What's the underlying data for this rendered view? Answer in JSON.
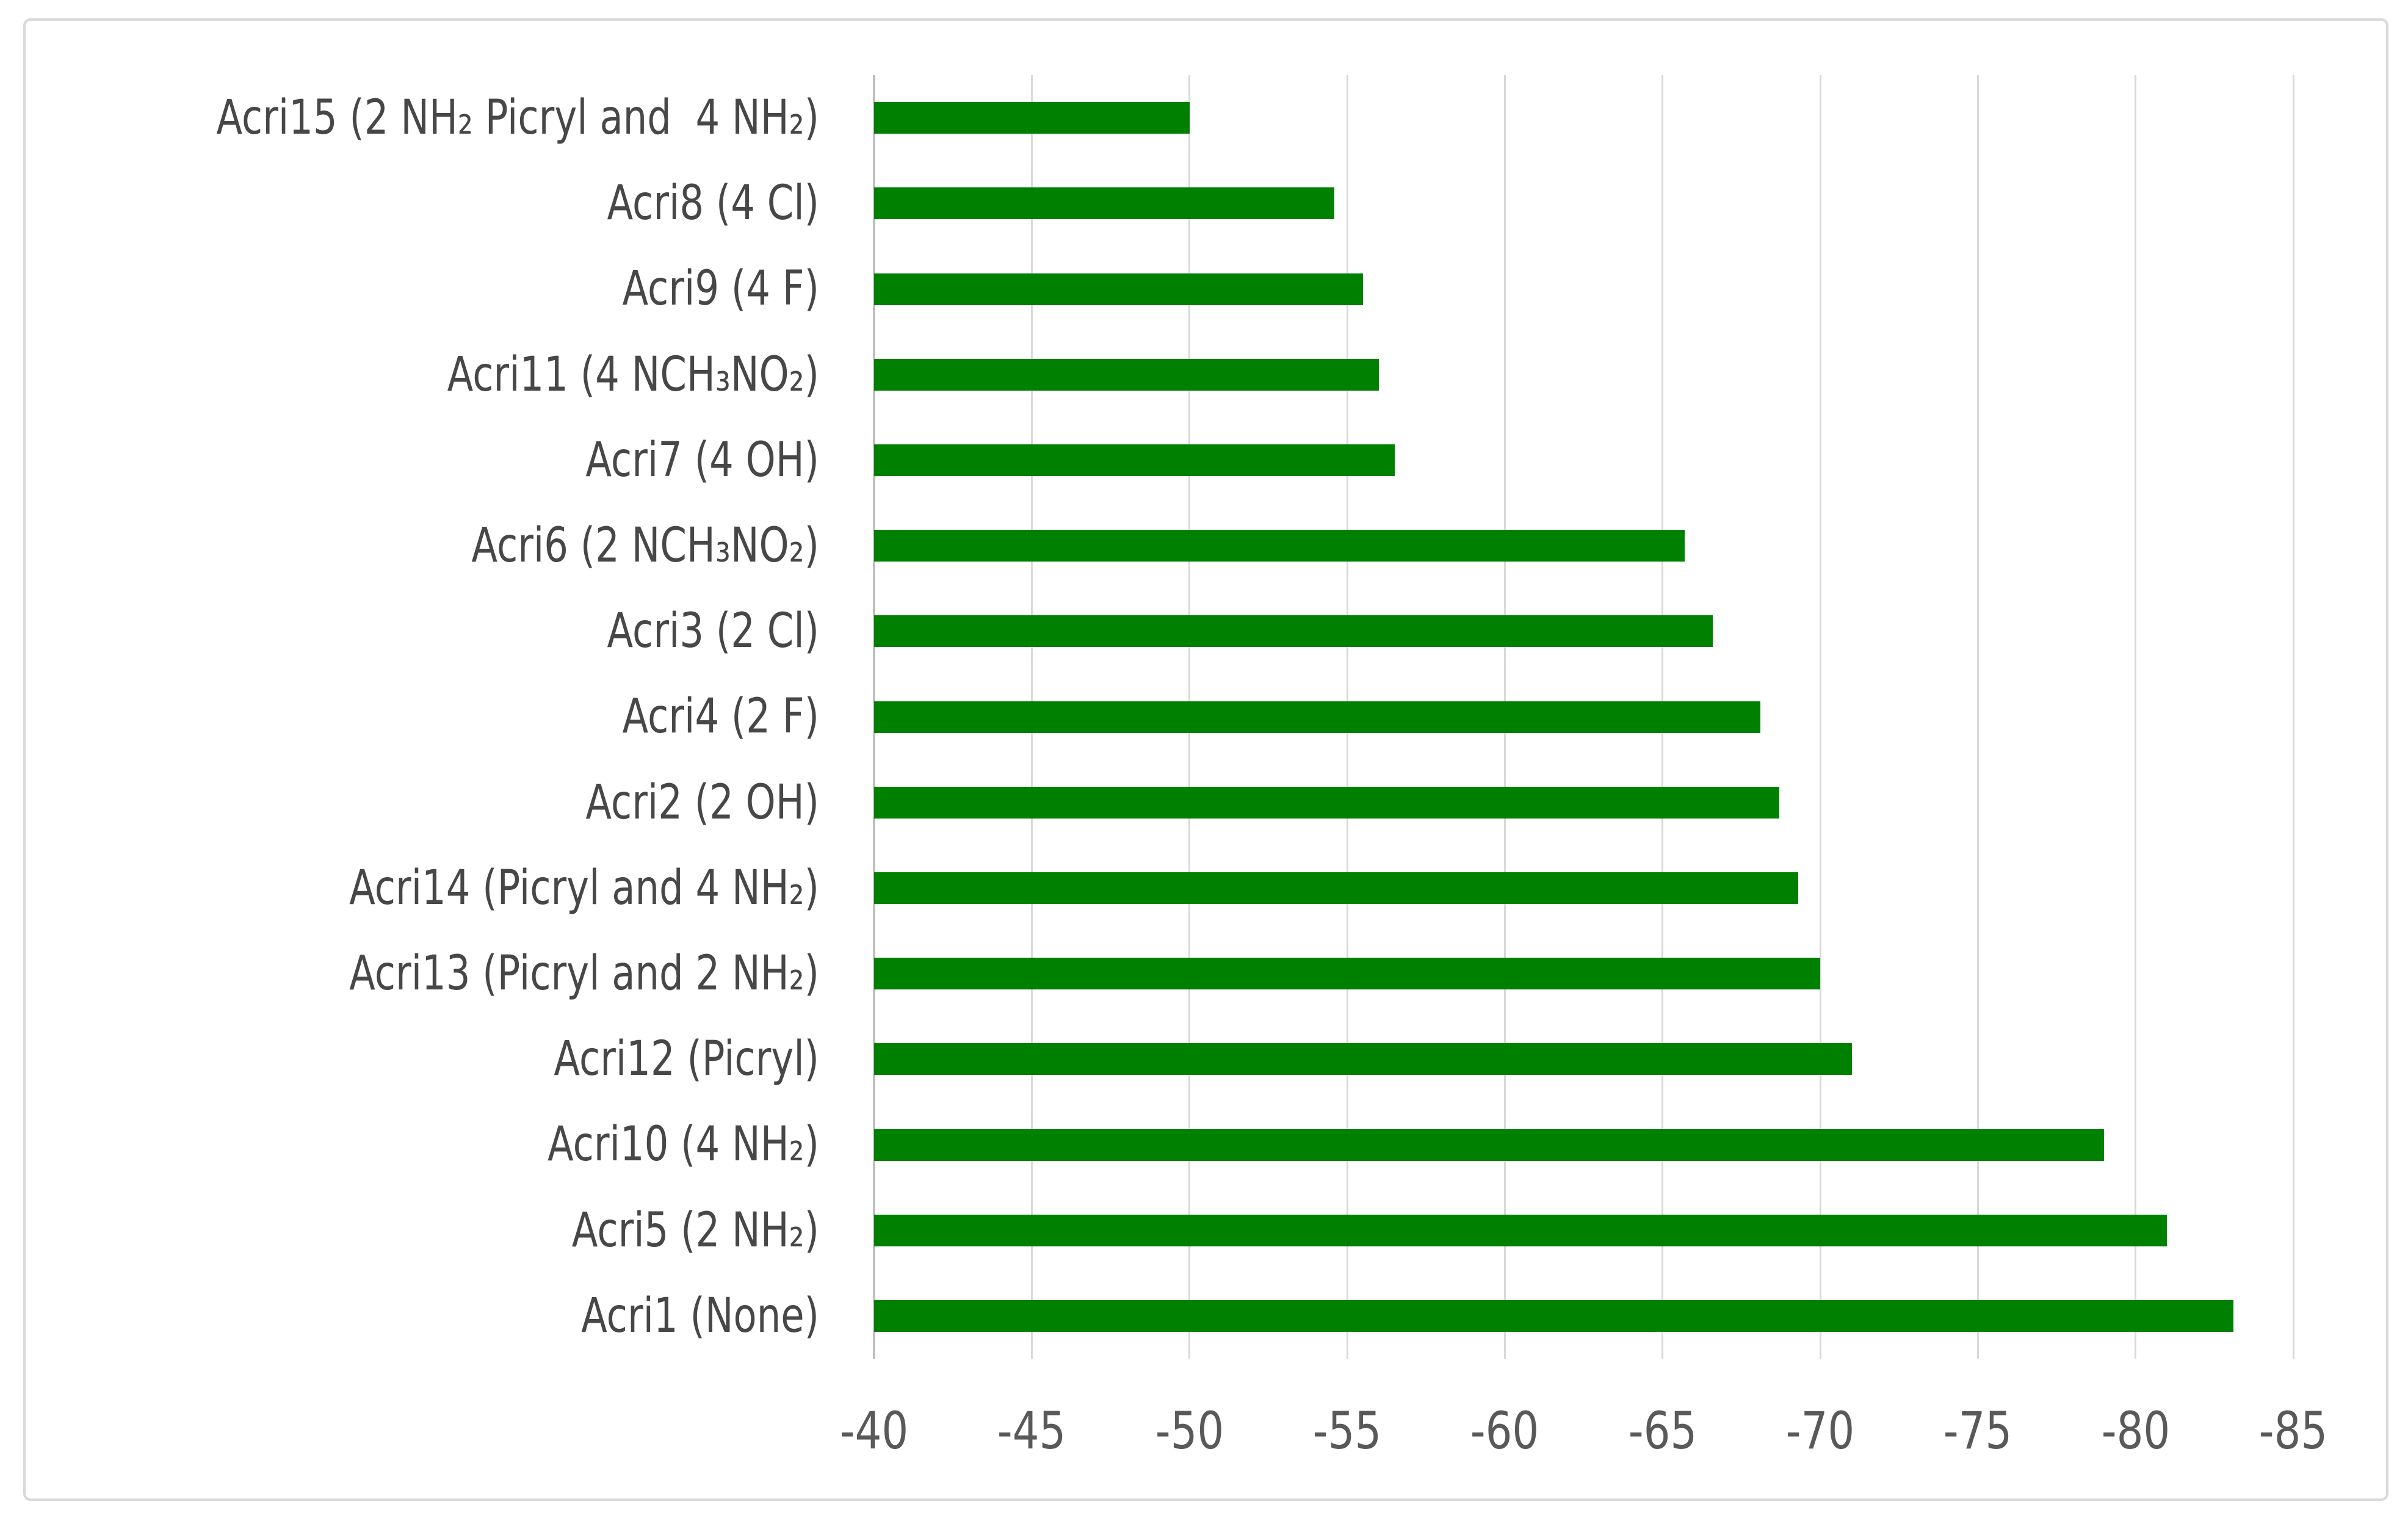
{
  "chart_data": {
    "type": "bar",
    "orientation": "horizontal",
    "title": "",
    "xlabel": "",
    "ylabel": "",
    "categories": [
      "Acri15 (2 NH₂ Picryl and  4 NH₂)",
      "Acri8 (4 Cl)",
      "Acri9 (4 F)",
      "Acri11 (4 NCH₃NO₂)",
      "Acri7 (4 OH)",
      "Acri6 (2 NCH₃NO₂)",
      "Acri3 (2 Cl)",
      "Acri4 (2 F)",
      "Acri2 (2 OH)",
      "Acri14 (Picryl and 4 NH₂)",
      "Acri13 (Picryl and 2 NH₂)",
      "Acri12 (Picryl)",
      "Acri10 (4 NH₂)",
      "Acri5 (2 NH₂)",
      "Acri1 (None)"
    ],
    "values": [
      -50,
      -54.6,
      -55.5,
      -56,
      -56.5,
      -65.7,
      -66.6,
      -68.1,
      -68.7,
      -69.3,
      -70,
      -71,
      -79,
      -81,
      -83.1
    ],
    "x_ticks": [
      -40,
      -45,
      -50,
      -55,
      -60,
      -65,
      -70,
      -75,
      -80,
      -85
    ],
    "x_tick_labels": [
      "-40",
      "-45",
      "-50",
      "-55",
      "-60",
      "-65",
      "-70",
      "-75",
      "-80",
      "-85"
    ],
    "xlim": [
      -40,
      -85
    ],
    "axis_reversed": true,
    "grid": true,
    "legend": false,
    "colors": {
      "bar": "#008000",
      "gridline": "#D9D9D9",
      "axis_line": "#BFBFBF",
      "category_label": "#474747",
      "tick_label": "#595959",
      "frame_border": "#D9D9D9",
      "background": "#FFFFFF"
    }
  }
}
